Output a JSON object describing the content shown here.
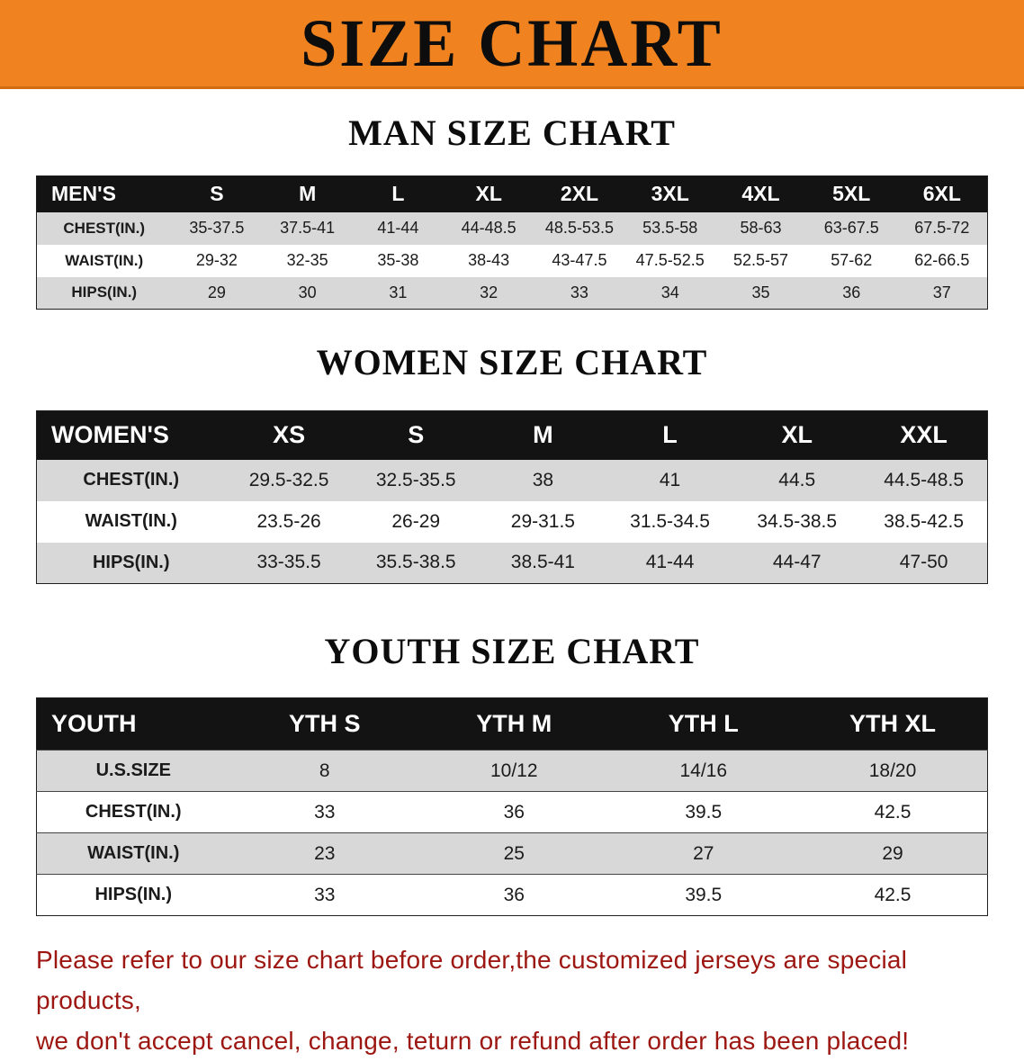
{
  "banner": {
    "title": "SIZE CHART"
  },
  "colors": {
    "banner_bg": "#f0831f",
    "table_header_bg": "#131313",
    "row_alt_bg": "#d8d8d8",
    "footer_text": "#9d1712"
  },
  "sections": [
    {
      "id": "men",
      "title": "MAN SIZE CHART",
      "label": "MEN'S",
      "columns": [
        "S",
        "M",
        "L",
        "XL",
        "2XL",
        "3XL",
        "4XL",
        "5XL",
        "6XL"
      ],
      "rows": [
        {
          "label": "CHEST(IN.)",
          "values": [
            "35-37.5",
            "37.5-41",
            "41-44",
            "44-48.5",
            "48.5-53.5",
            "53.5-58",
            "58-63",
            "63-67.5",
            "67.5-72"
          ]
        },
        {
          "label": "WAIST(IN.)",
          "values": [
            "29-32",
            "32-35",
            "35-38",
            "38-43",
            "43-47.5",
            "47.5-52.5",
            "52.5-57",
            "57-62",
            "62-66.5"
          ]
        },
        {
          "label": "HIPS(IN.)",
          "values": [
            "29",
            "30",
            "31",
            "32",
            "33",
            "34",
            "35",
            "36",
            "37"
          ]
        }
      ]
    },
    {
      "id": "women",
      "title": "WOMEN SIZE CHART",
      "label": "WOMEN'S",
      "columns": [
        "XS",
        "S",
        "M",
        "L",
        "XL",
        "XXL"
      ],
      "rows": [
        {
          "label": "CHEST(IN.)",
          "values": [
            "29.5-32.5",
            "32.5-35.5",
            "38",
            "41",
            "44.5",
            "44.5-48.5"
          ]
        },
        {
          "label": "WAIST(IN.)",
          "values": [
            "23.5-26",
            "26-29",
            "29-31.5",
            "31.5-34.5",
            "34.5-38.5",
            "38.5-42.5"
          ]
        },
        {
          "label": "HIPS(IN.)",
          "values": [
            "33-35.5",
            "35.5-38.5",
            "38.5-41",
            "41-44",
            "44-47",
            "47-50"
          ]
        }
      ]
    },
    {
      "id": "youth",
      "title": "YOUTH SIZE CHART",
      "label": "YOUTH",
      "columns": [
        "YTH S",
        "YTH M",
        "YTH L",
        "YTH XL"
      ],
      "rows": [
        {
          "label": "U.S.SIZE",
          "values": [
            "8",
            "10/12",
            "14/16",
            "18/20"
          ]
        },
        {
          "label": "CHEST(IN.)",
          "values": [
            "33",
            "36",
            "39.5",
            "42.5"
          ]
        },
        {
          "label": "WAIST(IN.)",
          "values": [
            "23",
            "25",
            "27",
            "29"
          ]
        },
        {
          "label": "HIPS(IN.)",
          "values": [
            "33",
            "36",
            "39.5",
            "42.5"
          ]
        }
      ]
    }
  ],
  "footer": {
    "lines": [
      "Please refer to our size chart before order,the customized jerseys are special products,",
      "we don't accept cancel, change, teturn or refund after order has been placed!"
    ]
  }
}
